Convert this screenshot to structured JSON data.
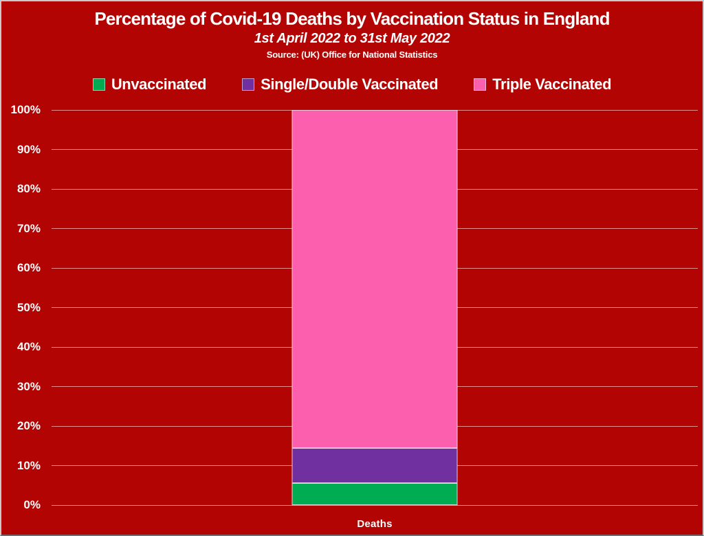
{
  "colors": {
    "page_background": "#B30404",
    "frame_border": "#C9C9C9",
    "gridline": "#F0CFCF",
    "text": "#FFFFFF"
  },
  "chart_data": {
    "type": "bar",
    "stacked": true,
    "title": "Percentage of Covid-19 Deaths by Vaccination Status in England",
    "subtitle": "1st April 2022 to 31st May 2022",
    "source": "Source: (UK) Office for National Statistics",
    "categories": [
      "Deaths"
    ],
    "series": [
      {
        "name": "Unvaccinated",
        "value": 5.6,
        "color": "#00AC52"
      },
      {
        "name": "Single/Double Vaccinated",
        "value": 8.9,
        "color": "#7030A0"
      },
      {
        "name": "Triple Vaccinated",
        "value": 85.5,
        "color": "#FC5FAD"
      }
    ],
    "unit": "%",
    "xlabel": "",
    "ylabel": "",
    "ylim": [
      0,
      100
    ],
    "yticks": [
      "0%",
      "10%",
      "20%",
      "30%",
      "40%",
      "50%",
      "60%",
      "70%",
      "80%",
      "90%",
      "100%"
    ],
    "grid": true,
    "legend_position": "top"
  }
}
